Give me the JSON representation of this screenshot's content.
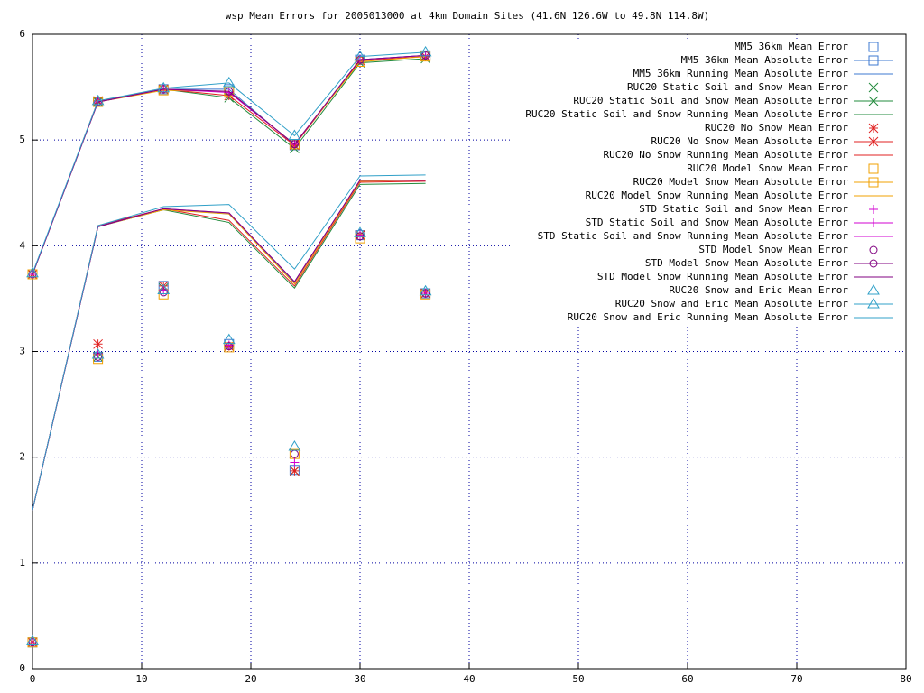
{
  "chart_data": {
    "type": "line",
    "title": "wsp Mean Errors for 2005013000 at 4km Domain Sites (41.6N 126.6W to 49.8N 114.8W)",
    "x": [
      0,
      6,
      12,
      18,
      24,
      30,
      36
    ],
    "xlim": [
      0,
      80
    ],
    "xticks": [
      0,
      10,
      20,
      30,
      40,
      50,
      60,
      70,
      80
    ],
    "ylim": [
      0,
      6
    ],
    "yticks": [
      0,
      1,
      2,
      3,
      4,
      5,
      6
    ],
    "grid": true,
    "legend": "top-right",
    "series": [
      {
        "name": "MM5 36km Mean Error",
        "color": "#3c78d0",
        "style": "points",
        "marker": "square",
        "values": [
          0.25,
          2.95,
          3.62,
          3.07,
          1.88,
          4.1,
          3.55
        ]
      },
      {
        "name": "MM5 36km Mean Absolute Error",
        "color": "#3c78d0",
        "style": "linespoints",
        "marker": "square",
        "values": [
          3.73,
          5.36,
          5.48,
          5.48,
          4.95,
          5.76,
          5.8
        ]
      },
      {
        "name": "MM5 36km Running Mean Absolute Error",
        "color": "#3c78d0",
        "style": "lines",
        "values": [
          1.5,
          4.18,
          4.35,
          4.3,
          3.65,
          4.62,
          4.62
        ]
      },
      {
        "name": "RUC20 Static Soil and Snow Mean Error",
        "color": "#228b3c",
        "style": "points",
        "marker": "x",
        "values": [
          0.25,
          2.95,
          3.6,
          3.05,
          1.87,
          4.1,
          3.55
        ]
      },
      {
        "name": "RUC20 Static Soil and Snow Mean Absolute Error",
        "color": "#228b3c",
        "style": "linespoints",
        "marker": "x",
        "values": [
          3.73,
          5.36,
          5.48,
          5.4,
          4.92,
          5.73,
          5.77
        ]
      },
      {
        "name": "RUC20 Static Soil and Snow Running Mean Absolute Error",
        "color": "#228b3c",
        "style": "lines",
        "values": [
          1.5,
          4.18,
          4.34,
          4.22,
          3.6,
          4.58,
          4.59
        ]
      },
      {
        "name": "RUC20 No Snow Mean Error",
        "color": "#e02020",
        "style": "points",
        "marker": "asterisk",
        "values": [
          0.25,
          3.07,
          3.62,
          3.05,
          1.87,
          4.1,
          3.55
        ]
      },
      {
        "name": "RUC20 No Snow Mean Absolute Error",
        "color": "#e02020",
        "style": "linespoints",
        "marker": "asterisk",
        "values": [
          3.73,
          5.37,
          5.48,
          5.42,
          4.95,
          5.75,
          5.79
        ]
      },
      {
        "name": "RUC20 No Snow Running Mean Absolute Error",
        "color": "#e02020",
        "style": "lines",
        "values": [
          1.5,
          4.19,
          4.35,
          4.24,
          3.62,
          4.6,
          4.61
        ]
      },
      {
        "name": "RUC20 Model Snow Mean Error",
        "color": "#f0a000",
        "style": "points",
        "marker": "square",
        "values": [
          0.25,
          2.93,
          3.54,
          3.04,
          2.03,
          4.07,
          3.54
        ]
      },
      {
        "name": "RUC20 Model Snow Mean Absolute Error",
        "color": "#f0a000",
        "style": "linespoints",
        "marker": "square",
        "values": [
          3.73,
          5.36,
          5.47,
          5.46,
          4.96,
          5.74,
          5.79
        ]
      },
      {
        "name": "RUC20 Model Snow Running Mean Absolute Error",
        "color": "#f0a000",
        "style": "lines",
        "values": [
          1.5,
          4.18,
          4.34,
          4.3,
          3.64,
          4.61,
          4.62
        ]
      },
      {
        "name": "STD Static Soil and Snow Mean Error",
        "color": "#d000d0",
        "style": "points",
        "marker": "plus",
        "values": [
          0.25,
          2.98,
          3.58,
          3.06,
          1.95,
          4.1,
          3.55
        ]
      },
      {
        "name": "STD Static Soil and Snow Mean Absolute Error",
        "color": "#d000d0",
        "style": "linespoints",
        "marker": "plus",
        "values": [
          3.73,
          5.36,
          5.48,
          5.45,
          4.96,
          5.76,
          5.8
        ]
      },
      {
        "name": "STD Static Soil and Snow Running Mean Absolute Error",
        "color": "#d000d0",
        "style": "lines",
        "values": [
          1.5,
          4.18,
          4.35,
          4.31,
          3.66,
          4.62,
          4.62
        ]
      },
      {
        "name": "STD Model Snow Mean Error",
        "color": "#800080",
        "style": "points",
        "marker": "circle",
        "values": [
          0.25,
          2.95,
          3.56,
          3.05,
          2.03,
          4.09,
          3.55
        ]
      },
      {
        "name": "STD Model Snow Mean Absolute Error",
        "color": "#800080",
        "style": "linespoints",
        "marker": "circle",
        "values": [
          3.73,
          5.36,
          5.48,
          5.46,
          4.96,
          5.76,
          5.8
        ]
      },
      {
        "name": "STD Model Snow Running Mean Absolute Error",
        "color": "#800080",
        "style": "lines",
        "values": [
          1.5,
          4.18,
          4.35,
          4.31,
          3.66,
          4.62,
          4.62
        ]
      },
      {
        "name": "RUC20 Snow and Eric Mean Error",
        "color": "#30a0c8",
        "style": "points",
        "marker": "triangle",
        "values": [
          0.26,
          2.97,
          3.58,
          3.11,
          2.1,
          4.12,
          3.57
        ]
      },
      {
        "name": "RUC20 Snow and Eric Mean Absolute Error",
        "color": "#30a0c8",
        "style": "linespoints",
        "marker": "triangle",
        "values": [
          3.74,
          5.37,
          5.49,
          5.54,
          5.04,
          5.79,
          5.83
        ]
      },
      {
        "name": "RUC20 Snow and Eric Running Mean Absolute Error",
        "color": "#30a0c8",
        "style": "lines",
        "values": [
          1.5,
          4.19,
          4.37,
          4.39,
          3.78,
          4.66,
          4.67
        ]
      }
    ]
  }
}
